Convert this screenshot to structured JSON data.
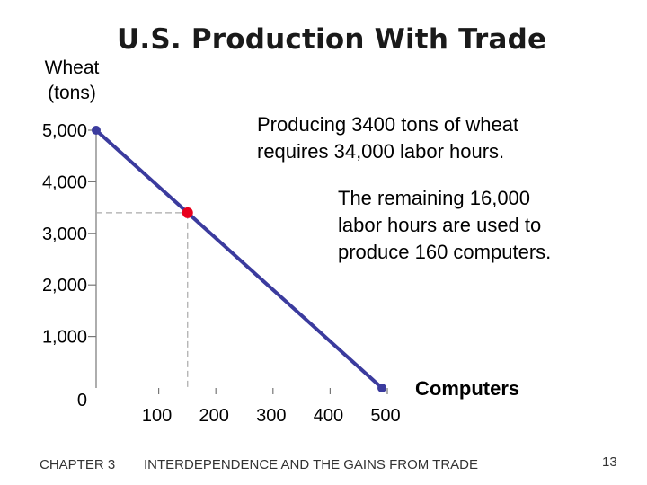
{
  "chart_data": {
    "type": "line",
    "title": "U.S. Production With Trade",
    "ylabel": "Wheat (tons)",
    "ylabel_lines": [
      "Wheat",
      "(tons)"
    ],
    "xlabel": "Computers",
    "xlim": [
      0,
      500
    ],
    "ylim": [
      0,
      5000
    ],
    "x_ticks": [
      100,
      200,
      300,
      400,
      500
    ],
    "x_tick_labels": [
      "100",
      "200",
      "300",
      "400",
      "500"
    ],
    "y_ticks": [
      0,
      1000,
      2000,
      3000,
      4000,
      5000
    ],
    "y_tick_labels": [
      "0",
      "1,000",
      "2,000",
      "3,000",
      "4,000",
      "5,000"
    ],
    "series": [
      {
        "x": [
          0,
          500
        ],
        "y": [
          5000,
          0
        ],
        "color": "#3b3b9e"
      }
    ],
    "endpoints": [
      {
        "x": 0,
        "y": 5000,
        "color": "#3b3b9e"
      },
      {
        "x": 500,
        "y": 0,
        "color": "#3b3b9e"
      }
    ],
    "highlight_point": {
      "x": 160,
      "y": 3400,
      "color": "#e8001c"
    },
    "grid": false,
    "annotations": [
      [
        "Producing 3400 tons of wheat",
        "requires 34,000 labor hours."
      ],
      [
        "The remaining 16,000",
        "labor hours are used to",
        "produce 160 computers."
      ]
    ]
  },
  "footer": {
    "chapter": "CHAPTER 3",
    "course": "INTERDEPENDENCE AND THE GAINS FROM TRADE",
    "page": "13"
  }
}
